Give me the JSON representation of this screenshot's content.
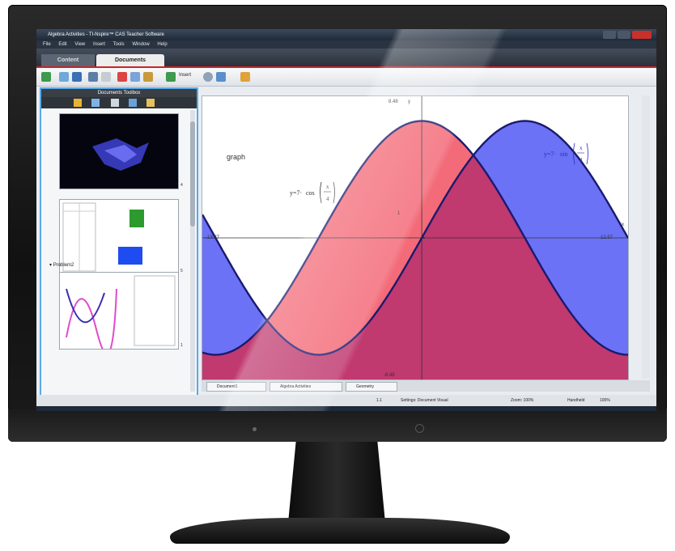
{
  "window": {
    "title": "Algebra Activities - TI-Nspire™ CAS Teacher Software"
  },
  "menu": [
    "File",
    "Edit",
    "View",
    "Insert",
    "Tools",
    "Window",
    "Help"
  ],
  "workspace_tabs": {
    "content": "Content",
    "documents": "Documents"
  },
  "toolbar": {
    "insert_label": "Insert"
  },
  "toolbox": {
    "title": "Documents Toolbox",
    "problem_label": "Problem2",
    "page_numbers": [
      "4",
      "5",
      "1"
    ]
  },
  "graph": {
    "name_label": "graph",
    "f1_label_prefix": "y=7·",
    "f1_func": "cos",
    "f1_num": "x",
    "f1_den": "4",
    "f2_label_prefix": "y=7·",
    "f2_func": "sin",
    "f2_num": "x",
    "f2_den": "4",
    "y_max_label": "8.48",
    "y_min_label": "-8.48",
    "x_min_label": "-13.37",
    "x_max_label": "12.57",
    "x_tick_label": "1",
    "y_tick_label": "1",
    "x_axis_letter": "x",
    "y_axis_letter": "y",
    "colors": {
      "series_red": "#f36a78",
      "series_blue": "#6b72f5",
      "overlap": "#c0396f",
      "curve": "#1a1a6e"
    }
  },
  "document_tabs": [
    "Document1",
    "Algebra Activities",
    "Geometry"
  ],
  "statusbar": {
    "page": "1.1",
    "settings": "Settings: Document Visual",
    "zoom_label": "Zoom: 100%",
    "handheld_label": "Handheld",
    "zoom_value": "100%"
  }
}
